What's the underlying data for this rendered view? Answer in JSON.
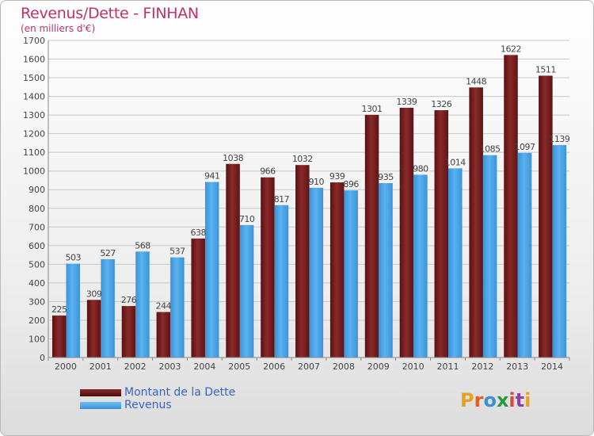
{
  "header": {
    "title": "Revenus/Dette - FINHAN",
    "subtitle": "(en milliers d'€)"
  },
  "legend": {
    "debt_label": "Montant de la Dette",
    "revenue_label": "Revenus"
  },
  "logo": {
    "letters": [
      "P",
      "r",
      "o",
      "x",
      "i",
      "t",
      "i"
    ]
  },
  "colors": {
    "debt": "#6e1c1c",
    "revenue": "#4aa3e6",
    "title": "#c0306a",
    "legend_text": "#3b63c7"
  },
  "chart_data": {
    "type": "bar",
    "title": "Revenus/Dette - FINHAN",
    "subtitle": "(en milliers d'€)",
    "categories": [
      "2000",
      "2001",
      "2002",
      "2003",
      "2004",
      "2005",
      "2006",
      "2007",
      "2008",
      "2009",
      "2010",
      "2011",
      "2012",
      "2013",
      "2014"
    ],
    "series": [
      {
        "name": "Montant de la Dette",
        "values": [
          225,
          309,
          276,
          244,
          638,
          1038,
          966,
          1032,
          939,
          1301,
          1339,
          1326,
          1448,
          1622,
          1511
        ]
      },
      {
        "name": "Revenus",
        "values": [
          503,
          527,
          568,
          537,
          941,
          710,
          817,
          910,
          896,
          935,
          980,
          1014,
          1085,
          1097,
          1139
        ]
      }
    ],
    "ylim": [
      0,
      1700
    ],
    "yticks": [
      0,
      100,
      200,
      300,
      400,
      500,
      600,
      700,
      800,
      900,
      1000,
      1100,
      1200,
      1300,
      1400,
      1500,
      1600,
      1700
    ],
    "grid": true,
    "legend_position": "bottom-left"
  }
}
